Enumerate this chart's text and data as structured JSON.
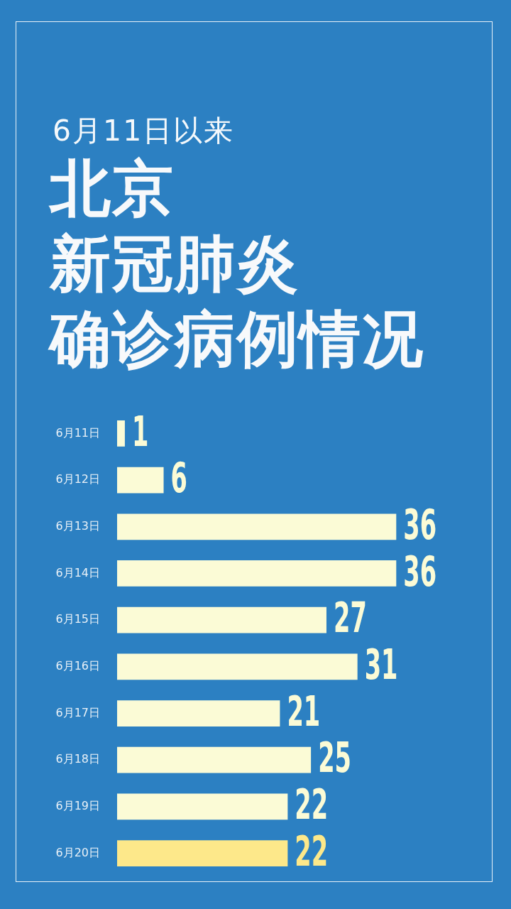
{
  "chart_data": {
    "type": "bar",
    "orientation": "horizontal",
    "subtitle": "6月11日以来",
    "title": "北京新冠肺炎确诊病例情况",
    "categories": [
      "6月11日",
      "6月12日",
      "6月13日",
      "6月14日",
      "6月15日",
      "6月16日",
      "6月17日",
      "6月18日",
      "6月19日",
      "6月20日"
    ],
    "values": [
      1,
      6,
      36,
      36,
      27,
      31,
      21,
      25,
      22,
      22
    ],
    "colors": [
      "#fbfbd6",
      "#fbfbd6",
      "#fbfbd6",
      "#fbfbd6",
      "#fbfbd6",
      "#fbfbd6",
      "#fbfbd6",
      "#fbfbd6",
      "#fbfbd6",
      "#fde88a"
    ],
    "data_labels": true,
    "tick_labels": "y"
  }
}
